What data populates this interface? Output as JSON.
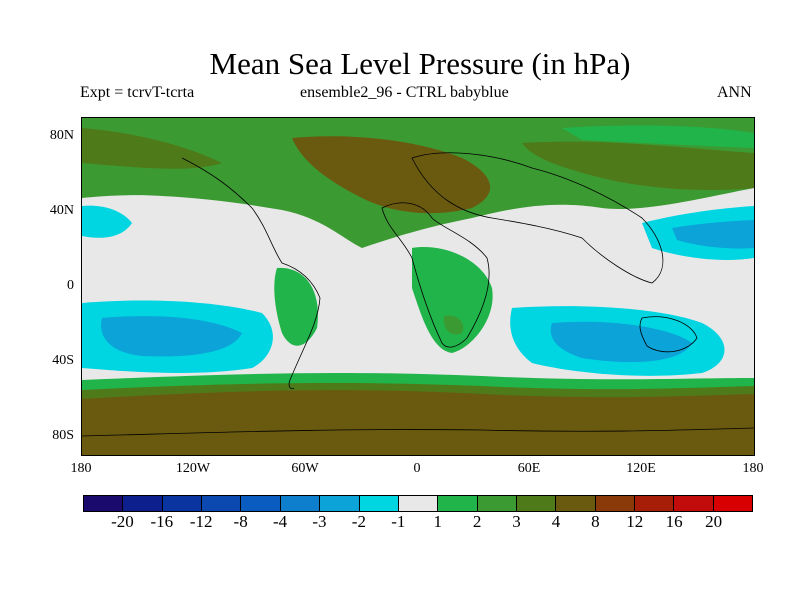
{
  "title": "Mean Sea Level Pressure (in hPa)",
  "subtitle_left": "Expt = tcrvT-tcrta",
  "subtitle_center": "ensemble2_96 - CTRL babyblue",
  "subtitle_right": "ANN",
  "axes": {
    "lat_labels": [
      "80N",
      "40N",
      "0",
      "40S",
      "80S"
    ],
    "lon_labels": [
      "180",
      "120W",
      "60W",
      "0",
      "60E",
      "120E",
      "180"
    ]
  },
  "colorbar": {
    "labels": [
      "-20",
      "-16",
      "-12",
      "-8",
      "-4",
      "-3",
      "-2",
      "-1",
      "1",
      "2",
      "3",
      "4",
      "8",
      "12",
      "16",
      "20"
    ],
    "colors": [
      "#1a0a6e",
      "#0c1f8c",
      "#0a34a0",
      "#0b48b0",
      "#0b5cc0",
      "#0e7fcc",
      "#0ba3d8",
      "#00d6e2",
      "#e8e8e8",
      "#20b44a",
      "#3c9a32",
      "#4f7a1a",
      "#6a5a10",
      "#8a3a08",
      "#a61e08",
      "#c20c0c",
      "#d80000"
    ]
  },
  "palette": {
    "neutral": "#e8e8e8",
    "cyan": "#00d6e2",
    "light_blue": "#0ba3d8",
    "green": "#20b44a",
    "mid_green": "#3c9a32",
    "olive": "#4f7a1a",
    "brown": "#6a5a10"
  }
}
